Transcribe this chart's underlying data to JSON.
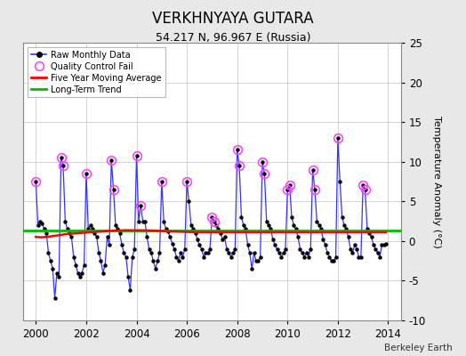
{
  "title": "VERKHNYAYA GUTARA",
  "subtitle": "54.217 N, 96.967 E (Russia)",
  "ylabel": "Temperature Anomaly (°C)",
  "attribution": "Berkeley Earth",
  "xlim": [
    1999.5,
    2014.5
  ],
  "ylim": [
    -10,
    25
  ],
  "yticks": [
    -10,
    -5,
    0,
    5,
    10,
    15,
    20,
    25
  ],
  "xticks": [
    2000,
    2002,
    2004,
    2006,
    2008,
    2010,
    2012,
    2014
  ],
  "bg_color": "#e8e8e8",
  "plot_bg_color": "#ffffff",
  "raw_color": "#3333ff",
  "raw_marker_color": "#000000",
  "qc_fail_color": "#ff44ff",
  "moving_avg_color": "#ff0000",
  "trend_color": "#00bb00",
  "trend_value": 1.3,
  "raw_data": [
    7.5,
    2.0,
    2.5,
    2.2,
    1.5,
    1.0,
    -1.5,
    -2.5,
    -3.5,
    -7.2,
    -4.0,
    -4.5,
    10.5,
    9.5,
    2.5,
    1.5,
    1.0,
    0.5,
    -2.0,
    -3.0,
    -4.0,
    -4.5,
    -4.0,
    -3.0,
    8.5,
    1.5,
    2.0,
    1.5,
    1.0,
    0.5,
    -1.5,
    -2.5,
    -4.0,
    -3.0,
    0.5,
    -0.5,
    10.2,
    6.5,
    2.0,
    1.5,
    1.0,
    -0.5,
    -1.5,
    -2.0,
    -4.5,
    -6.2,
    -2.0,
    -1.0,
    10.8,
    2.5,
    4.5,
    2.5,
    2.5,
    0.5,
    -1.0,
    -1.5,
    -2.5,
    -3.5,
    -2.5,
    -1.5,
    7.5,
    2.5,
    1.5,
    1.2,
    0.5,
    -0.3,
    -1.0,
    -2.0,
    -2.5,
    -1.5,
    -2.0,
    -1.0,
    7.5,
    5.0,
    2.0,
    1.5,
    1.0,
    0.2,
    -0.5,
    -1.0,
    -2.0,
    -1.5,
    -1.5,
    -1.0,
    3.0,
    2.5,
    2.0,
    1.5,
    1.0,
    0.2,
    0.5,
    -1.0,
    -1.5,
    -2.0,
    -1.5,
    -1.0,
    11.5,
    9.5,
    3.0,
    2.0,
    1.5,
    -0.5,
    -1.5,
    -3.5,
    -1.5,
    -2.5,
    -2.5,
    -2.0,
    10.0,
    8.5,
    2.5,
    2.0,
    1.5,
    0.2,
    -0.5,
    -1.0,
    -1.5,
    -2.0,
    -1.5,
    -1.0,
    6.5,
    7.0,
    3.0,
    2.0,
    1.5,
    0.5,
    -1.0,
    -1.5,
    -2.0,
    -1.5,
    -2.0,
    -1.0,
    9.0,
    6.5,
    2.5,
    2.0,
    1.5,
    0.2,
    -0.5,
    -1.5,
    -2.0,
    -2.5,
    -2.5,
    -2.0,
    13.0,
    7.5,
    3.0,
    2.0,
    1.5,
    0.5,
    -1.0,
    -1.5,
    -0.5,
    -1.0,
    -2.0,
    -2.0,
    7.0,
    6.5,
    1.5,
    1.0,
    0.5,
    -0.5,
    -1.0,
    -1.5,
    -2.0,
    -0.5,
    -0.5,
    -0.3
  ],
  "qc_fail_indices": [
    0,
    12,
    13,
    24,
    36,
    37,
    48,
    50,
    60,
    72,
    84,
    85,
    96,
    97,
    108,
    109,
    120,
    121,
    132,
    133,
    144,
    156,
    157
  ],
  "moving_avg": [
    0.52,
    0.5,
    0.48,
    0.48,
    0.5,
    0.52,
    0.55,
    0.58,
    0.62,
    0.66,
    0.7,
    0.74,
    0.78,
    0.82,
    0.86,
    0.9,
    0.92,
    0.94,
    0.96,
    0.98,
    1.0,
    1.02,
    1.04,
    1.06,
    1.08,
    1.1,
    1.12,
    1.14,
    1.16,
    1.18,
    1.2,
    1.22,
    1.24,
    1.26,
    1.28,
    1.29,
    1.3,
    1.31,
    1.32,
    1.33,
    1.34,
    1.35,
    1.36,
    1.36,
    1.36,
    1.36,
    1.36,
    1.36,
    1.36,
    1.36,
    1.36,
    1.36,
    1.35,
    1.34,
    1.33,
    1.32,
    1.31,
    1.3,
    1.29,
    1.28,
    1.27,
    1.26,
    1.25,
    1.24,
    1.23,
    1.22,
    1.21,
    1.2,
    1.19,
    1.18,
    1.17,
    1.16,
    1.15,
    1.14,
    1.13,
    1.12,
    1.11,
    1.1,
    1.1,
    1.1,
    1.1,
    1.1,
    1.1,
    1.1,
    1.1,
    1.1,
    1.1,
    1.1,
    1.1,
    1.1,
    1.1,
    1.1,
    1.1,
    1.1,
    1.1,
    1.1,
    1.1,
    1.1,
    1.1,
    1.1,
    1.1,
    1.1,
    1.1,
    1.1,
    1.1,
    1.1,
    1.1,
    1.1,
    1.1,
    1.1,
    1.1,
    1.1,
    1.1,
    1.1,
    1.1,
    1.1,
    1.1,
    1.1,
    1.1,
    1.1,
    1.1,
    1.1,
    1.1,
    1.1,
    1.1,
    1.1,
    1.1,
    1.1,
    1.1,
    1.1,
    1.1,
    1.1,
    1.1,
    1.1,
    1.1,
    1.1,
    1.1,
    1.1,
    1.1,
    1.1,
    1.1,
    1.1,
    1.1,
    1.1,
    1.1,
    1.1,
    1.1,
    1.1,
    1.1,
    1.1,
    1.1,
    1.1,
    1.1,
    1.1,
    1.1,
    1.1,
    1.1,
    1.1,
    1.1,
    1.1,
    1.1,
    1.1,
    1.1,
    1.1,
    1.1,
    1.1,
    1.1,
    1.1
  ]
}
